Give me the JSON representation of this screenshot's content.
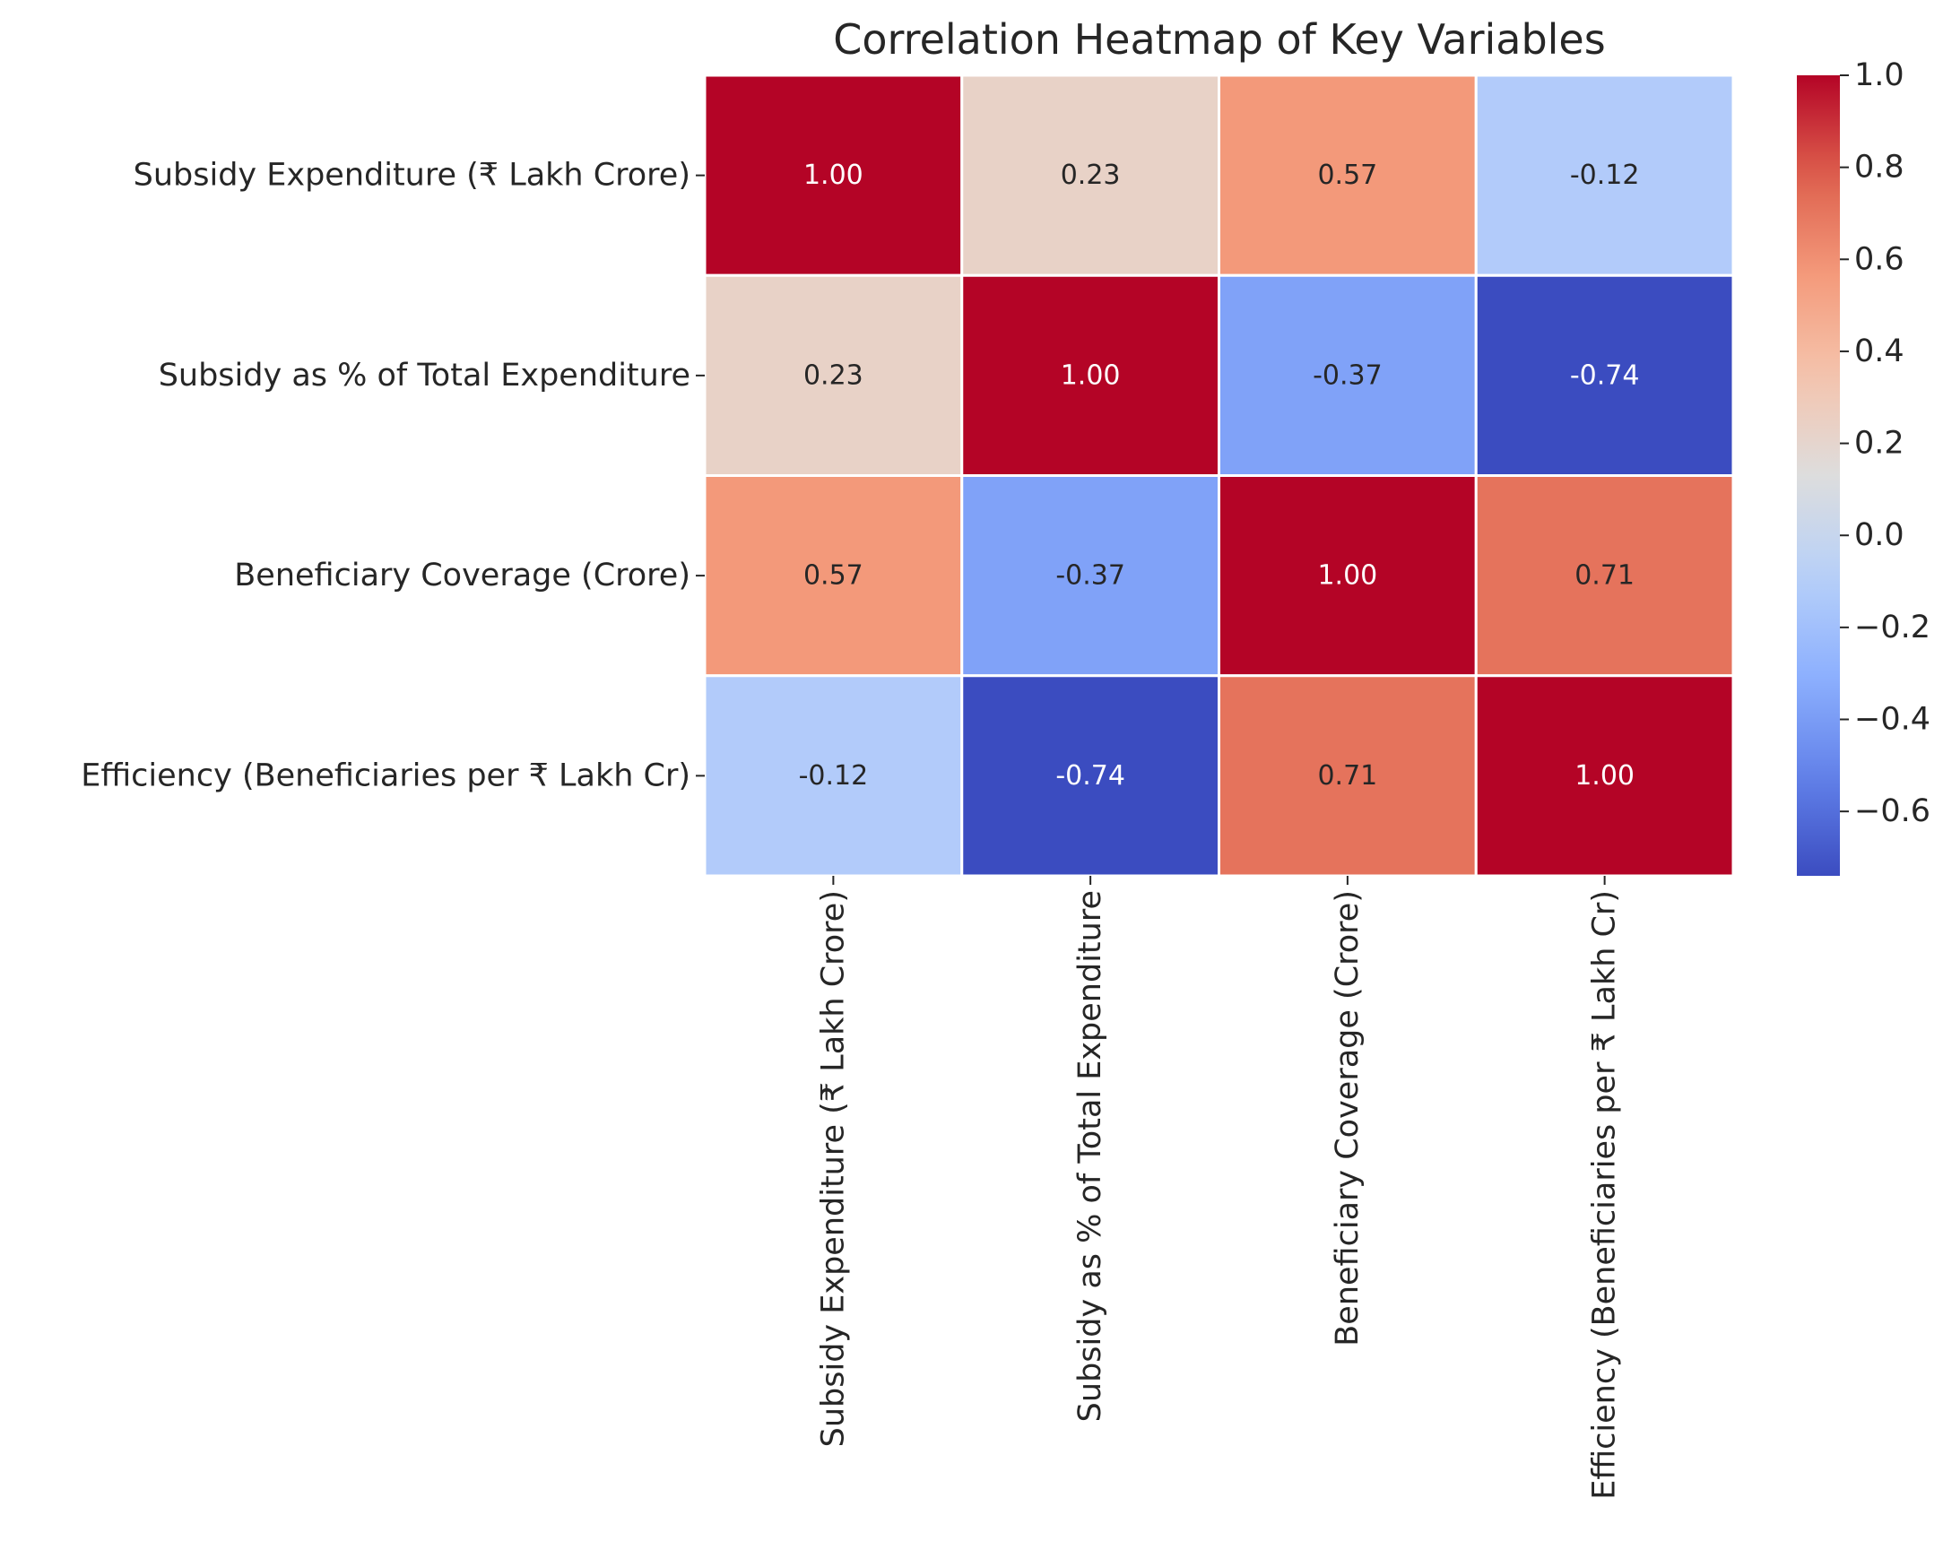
{
  "chart_data": {
    "type": "heatmap",
    "title": "Correlation Heatmap of Key Variables",
    "xlabel": "",
    "ylabel": "",
    "row_labels": [
      "Subsidy Expenditure (₹ Lakh Crore)",
      "Subsidy as % of Total Expenditure",
      "Beneficiary Coverage (Crore)",
      "Efficiency (Beneficiaries per ₹ Lakh Cr)"
    ],
    "col_labels": [
      "Subsidy Expenditure (₹ Lakh Crore)",
      "Subsidy as % of Total Expenditure",
      "Beneficiary Coverage (Crore)",
      "Efficiency (Beneficiaries per ₹ Lakh Cr)"
    ],
    "values": [
      [
        1.0,
        0.23,
        0.57,
        -0.12
      ],
      [
        0.23,
        1.0,
        -0.37,
        -0.74
      ],
      [
        0.57,
        -0.37,
        1.0,
        0.71
      ],
      [
        -0.12,
        -0.74,
        0.71,
        1.0
      ]
    ],
    "value_format": "0.00",
    "colormap": "coolwarm",
    "vmin": -0.74,
    "vmax": 1.0,
    "colorbar": {
      "ticks": [
        1.0,
        0.8,
        0.6,
        0.4,
        0.2,
        0.0,
        -0.2,
        -0.4,
        -0.6
      ],
      "tick_labels": [
        "1.0",
        "0.8",
        "0.6",
        "0.4",
        "0.2",
        "0.0",
        "−0.2",
        "−0.4",
        "−0.6"
      ]
    },
    "cell_border_color": "#ffffff",
    "grid": false,
    "legend": "colorbar-right"
  }
}
